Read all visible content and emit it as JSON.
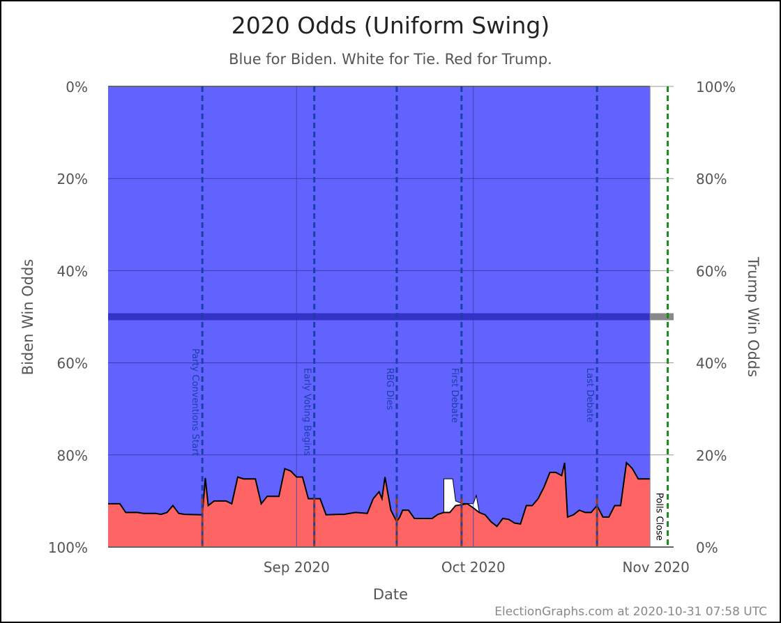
{
  "chart_data": {
    "type": "area",
    "title": "2020 Odds (Uniform Swing)",
    "subtitle": "Blue for Biden. White for Tie. Red for Trump.",
    "xlabel": "Date",
    "ylabel_left": "Biden Win Odds",
    "ylabel_right": "Trump Win Odds",
    "credit": "ElectionGraphs.com at 2020-10-31 07:58 UTC",
    "x_range": [
      "2020-07-31",
      "2020-11-04"
    ],
    "data_end": "2020-10-31",
    "y_range_percent": [
      0,
      100
    ],
    "left_ticks": [
      "0%",
      "20%",
      "40%",
      "60%",
      "80%",
      "100%"
    ],
    "right_ticks": [
      "100%",
      "80%",
      "60%",
      "40%",
      "20%",
      "0%"
    ],
    "x_ticks": [
      {
        "date": "2020-09-01",
        "label": "Sep 2020"
      },
      {
        "date": "2020-10-01",
        "label": "Oct 2020"
      },
      {
        "date": "2020-11-01",
        "label": "Nov 2020"
      }
    ],
    "colors": {
      "biden": "#6262ff",
      "tie": "#ffffff",
      "trump": "#ff6464",
      "event_line": "#1a3fa8",
      "midline": "#3333c8",
      "polls_close": "#1a8c1a",
      "grid": "#3b3ba8"
    },
    "events": [
      {
        "date": "2020-08-16",
        "label": "Party Conventions Start"
      },
      {
        "date": "2020-09-04",
        "label": "Early Voting Begins"
      },
      {
        "date": "2020-09-18",
        "label": "RBG Dies"
      },
      {
        "date": "2020-09-29",
        "label": "First Debate"
      },
      {
        "date": "2020-10-22",
        "label": "Last Debate"
      },
      {
        "date": "2020-11-03",
        "label": "Polls Close"
      }
    ],
    "series": [
      {
        "name": "Biden Win Odds",
        "comment": "upper boundary (Biden win %)",
        "points": [
          [
            "2020-07-31",
            90.6
          ],
          [
            "2020-08-02",
            90.6
          ],
          [
            "2020-08-03",
            92.5
          ],
          [
            "2020-08-05",
            92.5
          ],
          [
            "2020-08-06",
            92.7
          ],
          [
            "2020-08-08",
            92.7
          ],
          [
            "2020-08-09",
            92.9
          ],
          [
            "2020-08-10",
            92.5
          ],
          [
            "2020-08-11",
            91.0
          ],
          [
            "2020-08-12",
            92.7
          ],
          [
            "2020-08-13",
            92.9
          ],
          [
            "2020-08-16",
            93.0
          ],
          [
            "2020-08-16.5",
            85.0
          ],
          [
            "2020-08-17",
            91.0
          ],
          [
            "2020-08-18",
            90.0
          ],
          [
            "2020-08-20",
            90.0
          ],
          [
            "2020-08-21",
            90.6
          ],
          [
            "2020-08-22",
            84.8
          ],
          [
            "2020-08-23",
            85.2
          ],
          [
            "2020-08-25",
            85.2
          ],
          [
            "2020-08-26",
            90.6
          ],
          [
            "2020-08-27",
            89.0
          ],
          [
            "2020-08-29",
            89.0
          ],
          [
            "2020-08-30",
            83.0
          ],
          [
            "2020-08-31",
            83.5
          ],
          [
            "2020-09-01",
            84.8
          ],
          [
            "2020-09-02",
            84.8
          ],
          [
            "2020-09-03",
            89.5
          ],
          [
            "2020-09-05",
            89.5
          ],
          [
            "2020-09-06",
            93.0
          ],
          [
            "2020-09-08",
            92.9
          ],
          [
            "2020-09-09",
            92.9
          ],
          [
            "2020-09-11",
            92.5
          ],
          [
            "2020-09-13",
            92.7
          ],
          [
            "2020-09-14",
            89.5
          ],
          [
            "2020-09-15",
            88.0
          ],
          [
            "2020-09-15.5",
            89.5
          ],
          [
            "2020-09-16",
            84.8
          ],
          [
            "2020-09-17",
            92.0
          ],
          [
            "2020-09-18",
            94.5
          ],
          [
            "2020-09-18.5",
            93.5
          ],
          [
            "2020-09-19",
            92.0
          ],
          [
            "2020-09-20",
            92.0
          ],
          [
            "2020-09-21",
            93.8
          ],
          [
            "2020-09-24",
            93.8
          ],
          [
            "2020-09-25",
            92.9
          ],
          [
            "2020-09-26",
            92.5
          ],
          [
            "2020-09-27",
            92.5
          ],
          [
            "2020-09-28",
            91.0
          ],
          [
            "2020-09-30",
            90.6
          ],
          [
            "2020-10-01",
            91.5
          ],
          [
            "2020-10-02",
            92.5
          ],
          [
            "2020-10-03",
            93.0
          ],
          [
            "2020-10-04",
            94.5
          ],
          [
            "2020-10-05",
            95.5
          ],
          [
            "2020-10-06",
            93.8
          ],
          [
            "2020-10-07",
            94.0
          ],
          [
            "2020-10-08",
            94.8
          ],
          [
            "2020-10-09",
            95.0
          ],
          [
            "2020-10-10",
            91.0
          ],
          [
            "2020-10-11",
            91.0
          ],
          [
            "2020-10-12",
            89.5
          ],
          [
            "2020-10-13",
            87.0
          ],
          [
            "2020-10-14",
            83.8
          ],
          [
            "2020-10-15",
            83.8
          ],
          [
            "2020-10-16",
            84.5
          ],
          [
            "2020-10-16.5",
            81.7
          ],
          [
            "2020-10-17",
            93.5
          ],
          [
            "2020-10-18",
            93.0
          ],
          [
            "2020-10-19",
            92.0
          ],
          [
            "2020-10-20",
            92.5
          ],
          [
            "2020-10-21",
            92.5
          ],
          [
            "2020-10-22",
            91.0
          ],
          [
            "2020-10-23",
            93.5
          ],
          [
            "2020-10-24",
            93.5
          ],
          [
            "2020-10-25",
            91.0
          ],
          [
            "2020-10-26",
            91.0
          ],
          [
            "2020-10-27",
            81.7
          ],
          [
            "2020-10-27.5",
            82.3
          ],
          [
            "2020-10-28",
            83.0
          ],
          [
            "2020-10-29",
            85.2
          ],
          [
            "2020-10-31",
            85.2
          ]
        ]
      },
      {
        "name": "Tie",
        "comment": "tie band between Biden and Trump boundaries where visible",
        "points": [
          [
            "2020-09-26",
            85.2
          ],
          [
            "2020-09-27.5",
            85.2
          ],
          [
            "2020-09-28",
            90.0
          ],
          [
            "2020-09-29",
            90.5
          ],
          [
            "2020-10-01",
            90.6
          ],
          [
            "2020-10-01.5",
            88.8
          ],
          [
            "2020-10-02",
            92.3
          ]
        ]
      }
    ]
  }
}
